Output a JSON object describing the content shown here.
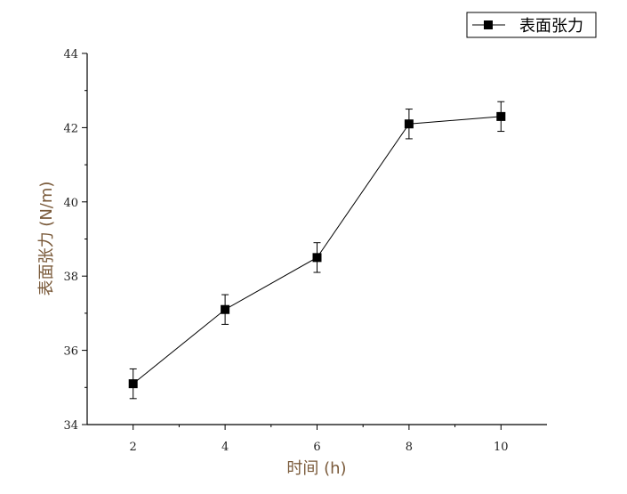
{
  "chart_data": {
    "type": "line",
    "title": "",
    "xlabel": "时间 (h)",
    "ylabel": "表面张力 (N/m)",
    "xlim": [
      1,
      11
    ],
    "ylim": [
      34,
      44
    ],
    "x_ticks": [
      2,
      4,
      6,
      8,
      10
    ],
    "y_ticks": [
      34,
      36,
      38,
      40,
      42,
      44
    ],
    "grid": false,
    "legend_position": "top-right",
    "series": [
      {
        "name": "表面张力",
        "marker": "square",
        "color": "#000000",
        "x": [
          2,
          4,
          6,
          8,
          10
        ],
        "y": [
          35.1,
          37.1,
          38.5,
          42.1,
          42.3
        ],
        "error": [
          0.4,
          0.4,
          0.4,
          0.4,
          0.4
        ]
      }
    ]
  },
  "colors": {
    "axis": "#000000",
    "axis_title": "#7a5a3a",
    "series": "#000000"
  }
}
